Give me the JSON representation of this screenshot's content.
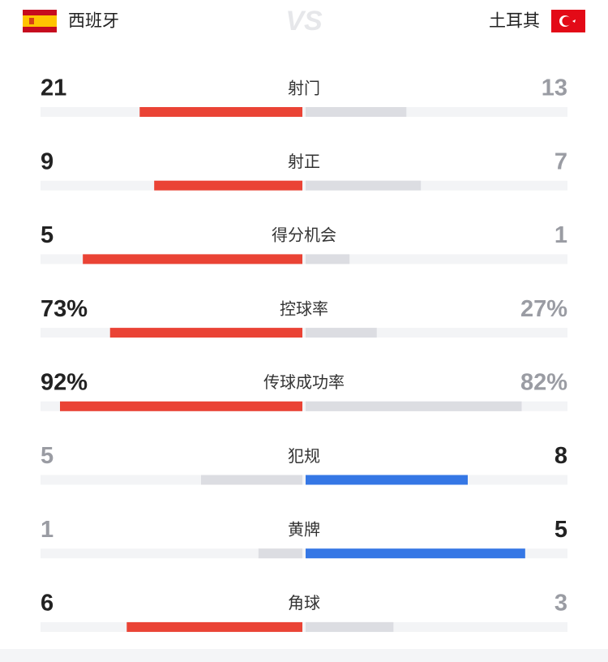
{
  "header": {
    "home": "西班牙",
    "vs": "VS",
    "away": "土耳其"
  },
  "stats": [
    {
      "label": "射门",
      "values": [
        21,
        13
      ]
    },
    {
      "label": "射正",
      "values": [
        9,
        7
      ]
    },
    {
      "label": "得分机会",
      "values": [
        5,
        1
      ]
    },
    {
      "label": "控球率",
      "values": [
        73,
        27
      ],
      "value_labels": [
        "73%",
        "27%"
      ]
    },
    {
      "label": "传球成功率",
      "values": [
        92,
        82
      ],
      "value_labels": [
        "92%",
        "82%"
      ]
    },
    {
      "label": "犯规",
      "values": [
        5,
        8
      ]
    },
    {
      "label": "黄牌",
      "values": [
        1,
        5
      ]
    },
    {
      "label": "角球",
      "values": [
        6,
        3
      ]
    }
  ],
  "colors": {
    "home": "#ea4335",
    "away": "#3577e5",
    "neutral": "#dcdde2",
    "track": "#f3f4f6"
  }
}
